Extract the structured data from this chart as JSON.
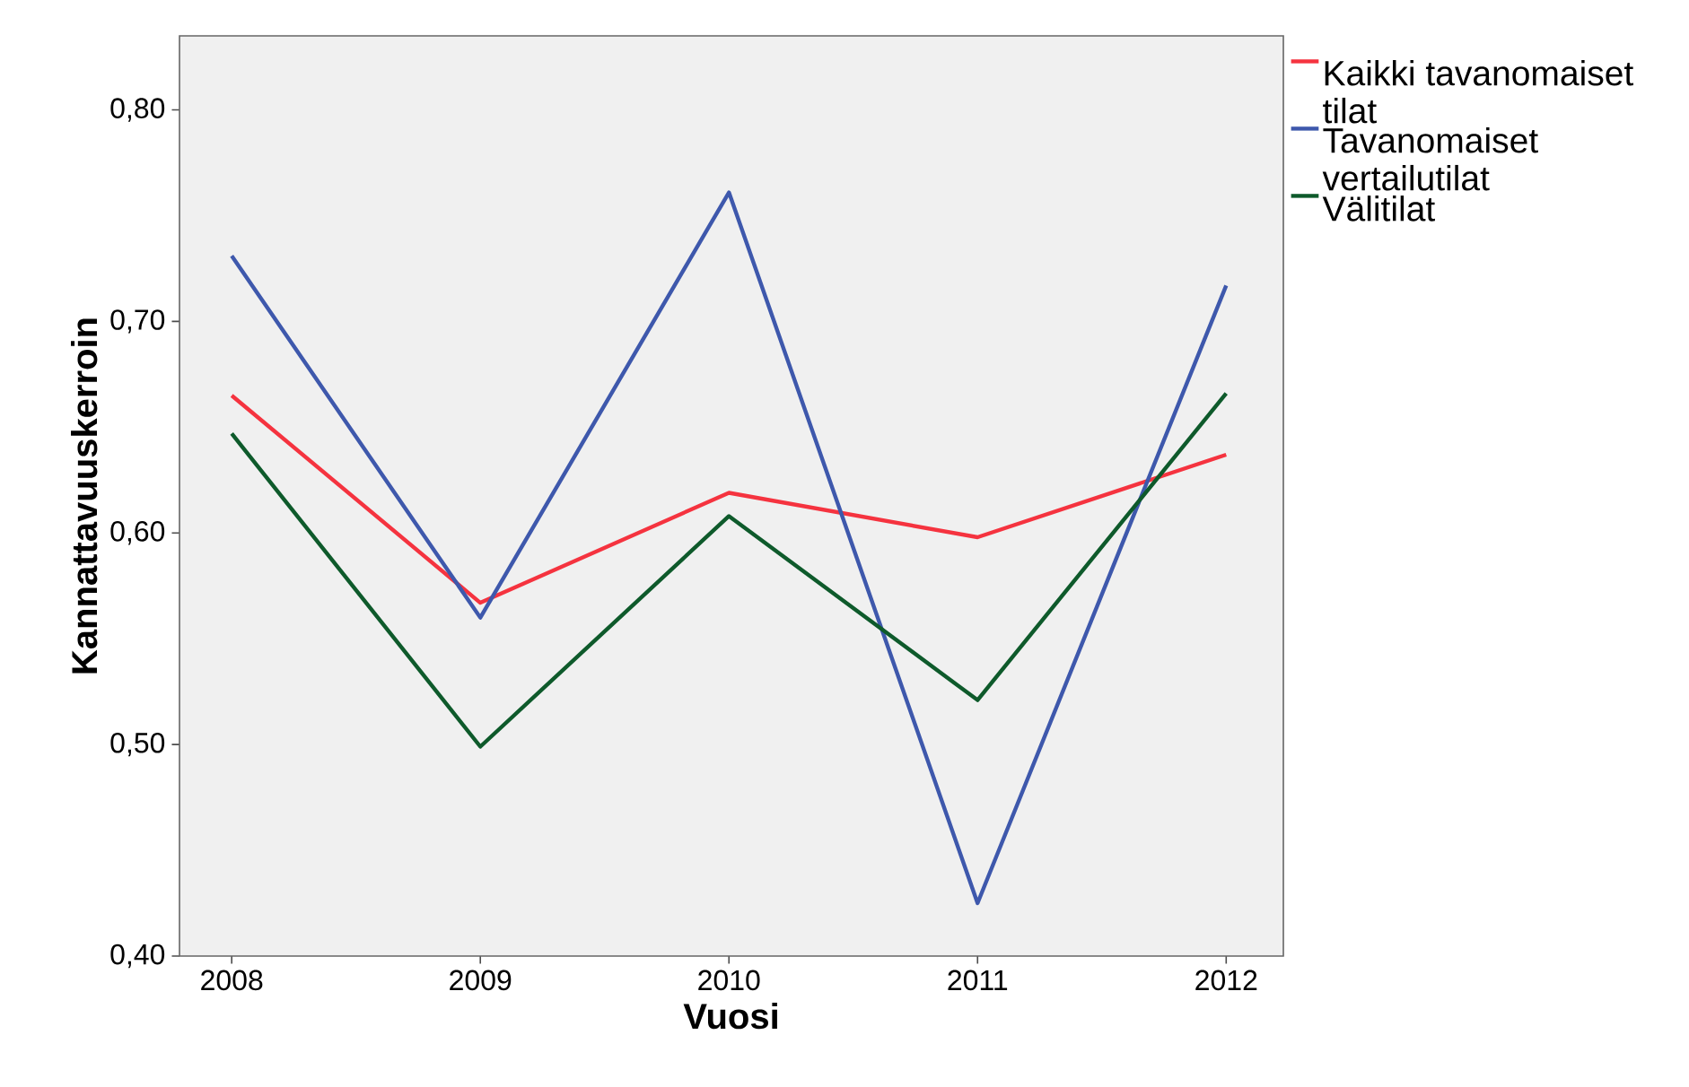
{
  "chart_data": {
    "type": "line",
    "xlabel": "Vuosi",
    "ylabel": "Kannattavuuskerroin",
    "categories": [
      "2008",
      "2009",
      "2010",
      "2011",
      "2012"
    ],
    "series": [
      {
        "name": "Kaikki tavanomaiset tilat",
        "color": "#f5333f",
        "values": [
          0.665,
          0.567,
          0.619,
          0.598,
          0.637
        ]
      },
      {
        "name": "Tavanomaiset vertailutilat",
        "color": "#3e58ac",
        "values": [
          0.731,
          0.56,
          0.761,
          0.425,
          0.717
        ]
      },
      {
        "name": "Välitilat",
        "color": "#0e5a2b",
        "values": [
          0.647,
          0.499,
          0.608,
          0.521,
          0.666
        ]
      }
    ],
    "ylim": [
      0.4,
      0.835
    ],
    "yticks": [
      {
        "value": 0.4,
        "label": "0,40"
      },
      {
        "value": 0.5,
        "label": "0,50"
      },
      {
        "value": 0.6,
        "label": "0,60"
      },
      {
        "value": 0.7,
        "label": "0,70"
      },
      {
        "value": 0.8,
        "label": "0,80"
      }
    ],
    "grid": false,
    "legend": "right",
    "marker": "none",
    "line_style": "solid"
  }
}
